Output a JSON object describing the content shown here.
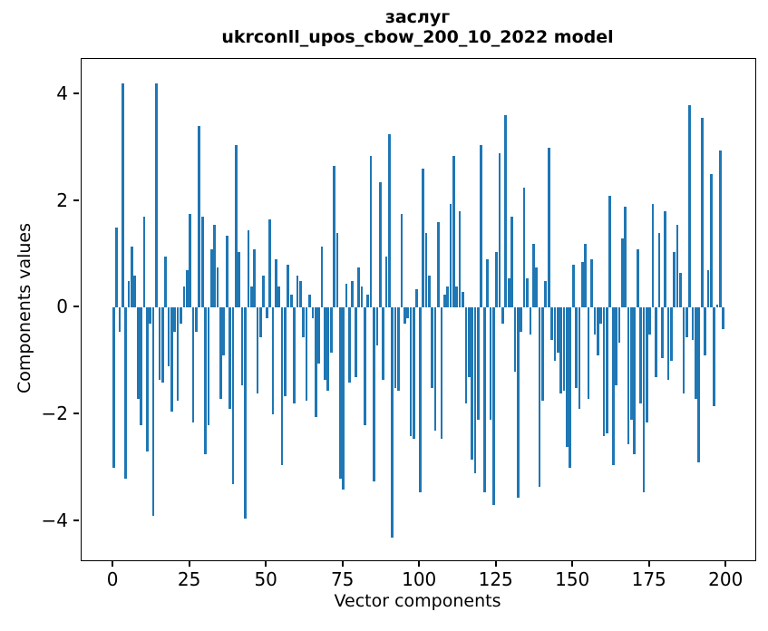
{
  "title": {
    "line1": "заслуг",
    "line2": "ukrconll_upos_cbow_200_10_2022 model"
  },
  "axes": {
    "xlabel": "Vector components",
    "ylabel": "Components values",
    "x_tick_labels": [
      "0",
      "25",
      "50",
      "75",
      "100",
      "125",
      "150",
      "175",
      "200"
    ],
    "x_tick_values": [
      0,
      25,
      50,
      75,
      100,
      125,
      150,
      175,
      200
    ],
    "y_tick_labels": [
      "4",
      "2",
      "0",
      "−2",
      "−4"
    ],
    "y_tick_values": [
      4,
      2,
      0,
      -2,
      -4
    ]
  },
  "chart_data": {
    "type": "bar",
    "title": "заслуг\nukrconll_upos_cbow_200_10_2022 model",
    "xlabel": "Vector components",
    "ylabel": "Components values",
    "bar_color": "#1f77b4",
    "grid": false,
    "legend": null,
    "x_description": "integer component indices 0..199",
    "x_start": 0,
    "x_step": 1,
    "n_bars": 200,
    "xlim": [
      -10.4,
      209.4
    ],
    "ylim": [
      -4.73,
      4.66
    ],
    "values": [
      -3.0,
      1.5,
      -0.45,
      4.2,
      -3.2,
      0.5,
      1.15,
      0.6,
      -1.7,
      -2.2,
      1.7,
      -2.7,
      -0.3,
      -3.9,
      4.2,
      -1.35,
      -1.4,
      0.95,
      -1.1,
      -1.95,
      -0.45,
      -1.75,
      -0.3,
      0.4,
      0.7,
      1.75,
      -2.15,
      -0.45,
      3.4,
      1.7,
      -2.75,
      -2.2,
      1.1,
      1.55,
      0.75,
      -1.7,
      -0.9,
      1.35,
      -1.9,
      -3.3,
      3.05,
      1.05,
      -1.45,
      -3.95,
      1.45,
      0.4,
      1.1,
      -1.6,
      -0.55,
      0.6,
      -0.2,
      1.65,
      -2.0,
      0.9,
      0.4,
      -2.95,
      -1.65,
      0.8,
      0.25,
      -1.8,
      0.6,
      0.5,
      -0.55,
      -1.75,
      0.25,
      -0.2,
      -2.05,
      -1.05,
      1.15,
      -1.35,
      -1.55,
      -0.85,
      2.65,
      1.4,
      -3.2,
      -3.4,
      0.45,
      -1.4,
      0.5,
      -1.3,
      0.75,
      0.4,
      -2.2,
      0.25,
      2.85,
      -3.25,
      -0.7,
      2.35,
      -1.35,
      0.95,
      3.25,
      -4.3,
      -1.5,
      -1.55,
      1.75,
      -0.3,
      -0.2,
      -2.4,
      -2.45,
      0.35,
      -3.45,
      2.6,
      1.4,
      0.6,
      -1.5,
      -2.3,
      1.6,
      -2.45,
      0.25,
      0.4,
      1.95,
      2.85,
      0.4,
      1.8,
      0.3,
      -1.8,
      -1.3,
      -2.85,
      -3.1,
      -2.1,
      3.05,
      -3.45,
      0.9,
      -2.1,
      -3.7,
      1.05,
      2.9,
      -0.3,
      3.6,
      0.55,
      1.7,
      -1.2,
      -3.55,
      -0.45,
      2.25,
      0.55,
      -0.5,
      1.2,
      0.75,
      -3.35,
      -1.75,
      0.5,
      3.0,
      -0.6,
      -1.0,
      -0.85,
      -1.6,
      -1.55,
      -2.6,
      -3.0,
      0.8,
      -1.5,
      -1.9,
      0.85,
      1.2,
      -1.7,
      0.9,
      -0.5,
      -0.9,
      -0.3,
      -2.4,
      -2.35,
      2.1,
      -2.95,
      -1.45,
      -0.65,
      1.3,
      1.9,
      -2.55,
      -2.1,
      -2.75,
      1.1,
      -1.8,
      -3.45,
      -2.15,
      -0.5,
      1.95,
      -1.3,
      1.4,
      -0.95,
      1.8,
      -1.35,
      -1.0,
      1.05,
      1.55,
      0.65,
      -1.6,
      -0.55,
      3.8,
      -0.6,
      -1.7,
      -2.9,
      3.55,
      -0.9,
      0.7,
      2.5,
      -1.85,
      0.05,
      2.95,
      -0.4
    ]
  },
  "colors": {
    "bar": "#1f77b4",
    "text": "#000000",
    "background": "#ffffff"
  }
}
